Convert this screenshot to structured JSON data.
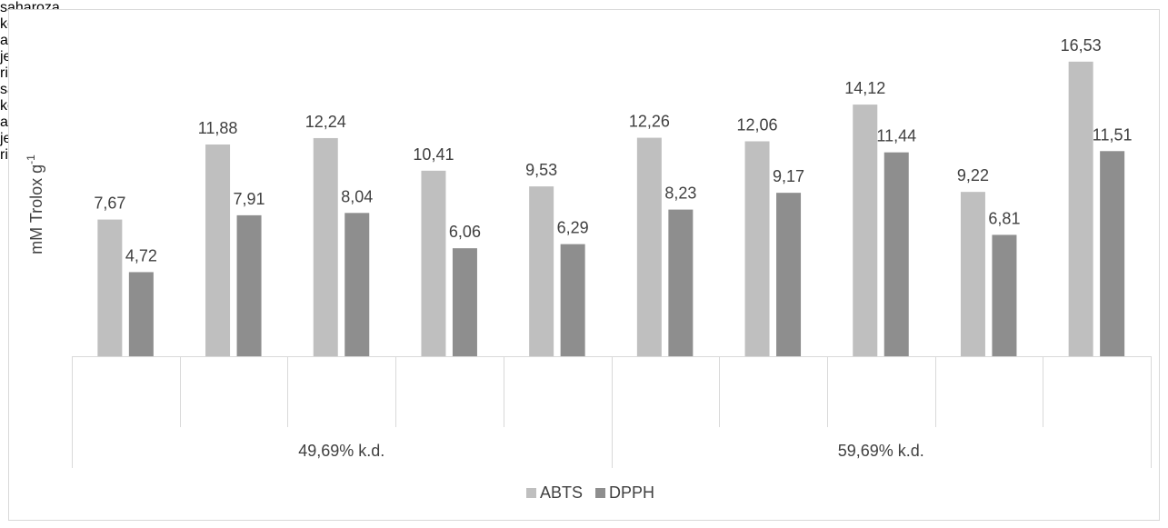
{
  "chart_data": {
    "type": "bar",
    "ylabel": {
      "text": "mM Trolox g",
      "superscript": "-1"
    },
    "categories": [
      "saharoza",
      "kokos šećer",
      "agava u prahu",
      "ječmeni slad",
      "rižin slad",
      "saharoza",
      "kokos šećer",
      "agava u prahu",
      "ječmeni slad",
      "rižin slad"
    ],
    "groups": [
      "49,69% k.d.",
      "59,69% k.d."
    ],
    "series": [
      {
        "name": "ABTS",
        "color": "#bfbfbf",
        "values": [
          7.67,
          11.88,
          12.24,
          10.41,
          9.53,
          12.26,
          12.06,
          14.12,
          9.22,
          16.53
        ],
        "value_labels": [
          "7,67",
          "11,88",
          "12,24",
          "10,41",
          "9,53",
          "12,26",
          "12,06",
          "14,12",
          "9,22",
          "16,53"
        ]
      },
      {
        "name": "DPPH",
        "color": "#8e8e8e",
        "values": [
          4.72,
          7.91,
          8.04,
          6.06,
          6.29,
          8.23,
          9.17,
          11.44,
          6.81,
          11.51
        ],
        "value_labels": [
          "4,72",
          "7,91",
          "8,04",
          "6,06",
          "6,29",
          "8,23",
          "9,17",
          "11,44",
          "6,81",
          "11,51"
        ]
      }
    ],
    "ylim": [
      0,
      18
    ],
    "legend": "bottom"
  }
}
